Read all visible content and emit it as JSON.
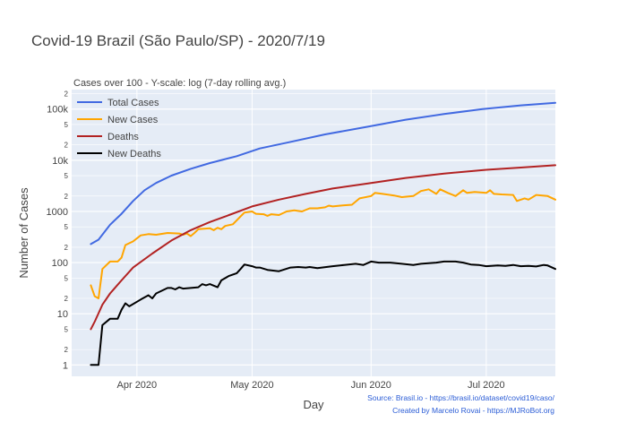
{
  "chart_data": {
    "type": "line",
    "title": "Covid-19 Brazil (São Paulo/SP) - 2020/7/19",
    "subtitle": "Cases over 100 - Y-scale: log (7-day rolling avg.)",
    "xlabel": "Day",
    "ylabel": "Number of Cases",
    "y_scale": "log",
    "xlim": [
      "2020-03-15",
      "2020-07-19"
    ],
    "ylim": [
      0.6,
      240000
    ],
    "grid": true,
    "legend_position": "top-left",
    "x_ticks": [
      {
        "date": "2020-04-01",
        "label": "Apr 2020"
      },
      {
        "date": "2020-05-01",
        "label": "May 2020"
      },
      {
        "date": "2020-06-01",
        "label": "Jun 2020"
      },
      {
        "date": "2020-07-01",
        "label": "Jul 2020"
      }
    ],
    "y_major_ticks": [
      {
        "value": 1,
        "label": "1"
      },
      {
        "value": 10,
        "label": "10"
      },
      {
        "value": 100,
        "label": "100"
      },
      {
        "value": 1000,
        "label": "1000"
      },
      {
        "value": 10000,
        "label": "10k"
      },
      {
        "value": 100000,
        "label": "100k"
      }
    ],
    "y_minor_ticks": [
      {
        "value": 2,
        "label": "2"
      },
      {
        "value": 5,
        "label": "5"
      },
      {
        "value": 20,
        "label": "2"
      },
      {
        "value": 50,
        "label": "5"
      },
      {
        "value": 200,
        "label": "2"
      },
      {
        "value": 500,
        "label": "5"
      },
      {
        "value": 2000,
        "label": "2"
      },
      {
        "value": 5000,
        "label": "5"
      },
      {
        "value": 20000,
        "label": "2"
      },
      {
        "value": 50000,
        "label": "5"
      },
      {
        "value": 200000,
        "label": "2"
      }
    ],
    "series": [
      {
        "name": "Total Cases",
        "color": "#4169e1",
        "points": [
          [
            "2020-03-20",
            230
          ],
          [
            "2020-03-22",
            280
          ],
          [
            "2020-03-25",
            550
          ],
          [
            "2020-03-28",
            900
          ],
          [
            "2020-03-31",
            1600
          ],
          [
            "2020-04-03",
            2600
          ],
          [
            "2020-04-06",
            3600
          ],
          [
            "2020-04-10",
            5000
          ],
          [
            "2020-04-15",
            6800
          ],
          [
            "2020-04-20",
            8800
          ],
          [
            "2020-04-27",
            12000
          ],
          [
            "2020-05-03",
            17000
          ],
          [
            "2020-05-10",
            22000
          ],
          [
            "2020-05-20",
            32000
          ],
          [
            "2020-05-31",
            45000
          ],
          [
            "2020-06-10",
            62000
          ],
          [
            "2020-06-20",
            80000
          ],
          [
            "2020-06-30",
            100000
          ],
          [
            "2020-07-10",
            118000
          ],
          [
            "2020-07-19",
            132000
          ]
        ]
      },
      {
        "name": "New Cases",
        "color": "#ffa500",
        "points": [
          [
            "2020-03-20",
            36
          ],
          [
            "2020-03-21",
            22
          ],
          [
            "2020-03-22",
            20
          ],
          [
            "2020-03-23",
            75
          ],
          [
            "2020-03-25",
            105
          ],
          [
            "2020-03-27",
            105
          ],
          [
            "2020-03-28",
            125
          ],
          [
            "2020-03-29",
            220
          ],
          [
            "2020-03-31",
            260
          ],
          [
            "2020-04-02",
            340
          ],
          [
            "2020-04-04",
            360
          ],
          [
            "2020-04-06",
            350
          ],
          [
            "2020-04-09",
            380
          ],
          [
            "2020-04-12",
            370
          ],
          [
            "2020-04-13",
            350
          ],
          [
            "2020-04-14",
            370
          ],
          [
            "2020-04-15",
            330
          ],
          [
            "2020-04-16",
            380
          ],
          [
            "2020-04-17",
            450
          ],
          [
            "2020-04-20",
            470
          ],
          [
            "2020-04-21",
            430
          ],
          [
            "2020-04-22",
            480
          ],
          [
            "2020-04-23",
            450
          ],
          [
            "2020-04-24",
            520
          ],
          [
            "2020-04-26",
            560
          ],
          [
            "2020-04-28",
            800
          ],
          [
            "2020-04-29",
            950
          ],
          [
            "2020-05-01",
            1000
          ],
          [
            "2020-05-02",
            900
          ],
          [
            "2020-05-04",
            880
          ],
          [
            "2020-05-05",
            820
          ],
          [
            "2020-05-06",
            880
          ],
          [
            "2020-05-08",
            850
          ],
          [
            "2020-05-10",
            1000
          ],
          [
            "2020-05-12",
            1050
          ],
          [
            "2020-05-14",
            1000
          ],
          [
            "2020-05-16",
            1150
          ],
          [
            "2020-05-18",
            1150
          ],
          [
            "2020-05-20",
            1200
          ],
          [
            "2020-05-21",
            1300
          ],
          [
            "2020-05-22",
            1250
          ],
          [
            "2020-05-24",
            1300
          ],
          [
            "2020-05-27",
            1350
          ],
          [
            "2020-05-29",
            1800
          ],
          [
            "2020-06-01",
            2000
          ],
          [
            "2020-06-02",
            2300
          ],
          [
            "2020-06-04",
            2200
          ],
          [
            "2020-06-07",
            2050
          ],
          [
            "2020-06-09",
            1900
          ],
          [
            "2020-06-12",
            2000
          ],
          [
            "2020-06-14",
            2500
          ],
          [
            "2020-06-16",
            2700
          ],
          [
            "2020-06-18",
            2200
          ],
          [
            "2020-06-19",
            2700
          ],
          [
            "2020-06-21",
            2300
          ],
          [
            "2020-06-23",
            2000
          ],
          [
            "2020-06-25",
            2600
          ],
          [
            "2020-06-26",
            2300
          ],
          [
            "2020-06-28",
            2400
          ],
          [
            "2020-07-01",
            2300
          ],
          [
            "2020-07-02",
            2600
          ],
          [
            "2020-07-03",
            2200
          ],
          [
            "2020-07-05",
            2150
          ],
          [
            "2020-07-08",
            2100
          ],
          [
            "2020-07-09",
            1600
          ],
          [
            "2020-07-11",
            1800
          ],
          [
            "2020-07-12",
            1700
          ],
          [
            "2020-07-14",
            2100
          ],
          [
            "2020-07-17",
            2000
          ],
          [
            "2020-07-19",
            1700
          ]
        ]
      },
      {
        "name": "Deaths",
        "color": "#b22222",
        "points": [
          [
            "2020-03-20",
            5
          ],
          [
            "2020-03-21",
            7
          ],
          [
            "2020-03-23",
            15
          ],
          [
            "2020-03-25",
            25
          ],
          [
            "2020-03-28",
            45
          ],
          [
            "2020-03-31",
            80
          ],
          [
            "2020-04-05",
            150
          ],
          [
            "2020-04-10",
            270
          ],
          [
            "2020-04-15",
            430
          ],
          [
            "2020-04-20",
            620
          ],
          [
            "2020-04-25",
            850
          ],
          [
            "2020-05-01",
            1250
          ],
          [
            "2020-05-08",
            1700
          ],
          [
            "2020-05-15",
            2200
          ],
          [
            "2020-05-22",
            2800
          ],
          [
            "2020-05-31",
            3500
          ],
          [
            "2020-06-10",
            4500
          ],
          [
            "2020-06-20",
            5500
          ],
          [
            "2020-07-01",
            6500
          ],
          [
            "2020-07-10",
            7200
          ],
          [
            "2020-07-19",
            8000
          ]
        ]
      },
      {
        "name": "New Deaths",
        "color": "#000000",
        "points": [
          [
            "2020-03-20",
            1
          ],
          [
            "2020-03-22",
            1
          ],
          [
            "2020-03-23",
            6
          ],
          [
            "2020-03-25",
            8
          ],
          [
            "2020-03-27",
            8
          ],
          [
            "2020-03-28",
            12
          ],
          [
            "2020-03-29",
            16
          ],
          [
            "2020-03-30",
            14
          ],
          [
            "2020-04-02",
            19
          ],
          [
            "2020-04-04",
            23
          ],
          [
            "2020-04-05",
            20
          ],
          [
            "2020-04-06",
            25
          ],
          [
            "2020-04-09",
            32
          ],
          [
            "2020-04-10",
            32
          ],
          [
            "2020-04-11",
            30
          ],
          [
            "2020-04-12",
            33
          ],
          [
            "2020-04-13",
            31
          ],
          [
            "2020-04-17",
            33
          ],
          [
            "2020-04-18",
            38
          ],
          [
            "2020-04-19",
            36
          ],
          [
            "2020-04-20",
            38
          ],
          [
            "2020-04-22",
            33
          ],
          [
            "2020-04-23",
            45
          ],
          [
            "2020-04-25",
            55
          ],
          [
            "2020-04-27",
            62
          ],
          [
            "2020-04-28",
            75
          ],
          [
            "2020-04-29",
            92
          ],
          [
            "2020-05-01",
            85
          ],
          [
            "2020-05-02",
            80
          ],
          [
            "2020-05-03",
            80
          ],
          [
            "2020-05-05",
            72
          ],
          [
            "2020-05-08",
            68
          ],
          [
            "2020-05-11",
            80
          ],
          [
            "2020-05-13",
            82
          ],
          [
            "2020-05-15",
            80
          ],
          [
            "2020-05-16",
            82
          ],
          [
            "2020-05-18",
            78
          ],
          [
            "2020-05-22",
            85
          ],
          [
            "2020-05-25",
            90
          ],
          [
            "2020-05-28",
            95
          ],
          [
            "2020-05-30",
            90
          ],
          [
            "2020-06-01",
            105
          ],
          [
            "2020-06-03",
            100
          ],
          [
            "2020-06-06",
            100
          ],
          [
            "2020-06-09",
            95
          ],
          [
            "2020-06-12",
            90
          ],
          [
            "2020-06-14",
            95
          ],
          [
            "2020-06-18",
            100
          ],
          [
            "2020-06-20",
            105
          ],
          [
            "2020-06-23",
            105
          ],
          [
            "2020-06-25",
            100
          ],
          [
            "2020-06-27",
            92
          ],
          [
            "2020-06-29",
            90
          ],
          [
            "2020-07-01",
            85
          ],
          [
            "2020-07-04",
            88
          ],
          [
            "2020-07-06",
            86
          ],
          [
            "2020-07-08",
            90
          ],
          [
            "2020-07-10",
            85
          ],
          [
            "2020-07-12",
            86
          ],
          [
            "2020-07-14",
            84
          ],
          [
            "2020-07-16",
            90
          ],
          [
            "2020-07-17",
            88
          ],
          [
            "2020-07-19",
            75
          ]
        ]
      }
    ],
    "source_note": "Source: Brasil.io - https://brasil.io/dataset/covid19/caso/",
    "credit_note": "Created by Marcelo Rovai - https://MJRoBot.org"
  }
}
